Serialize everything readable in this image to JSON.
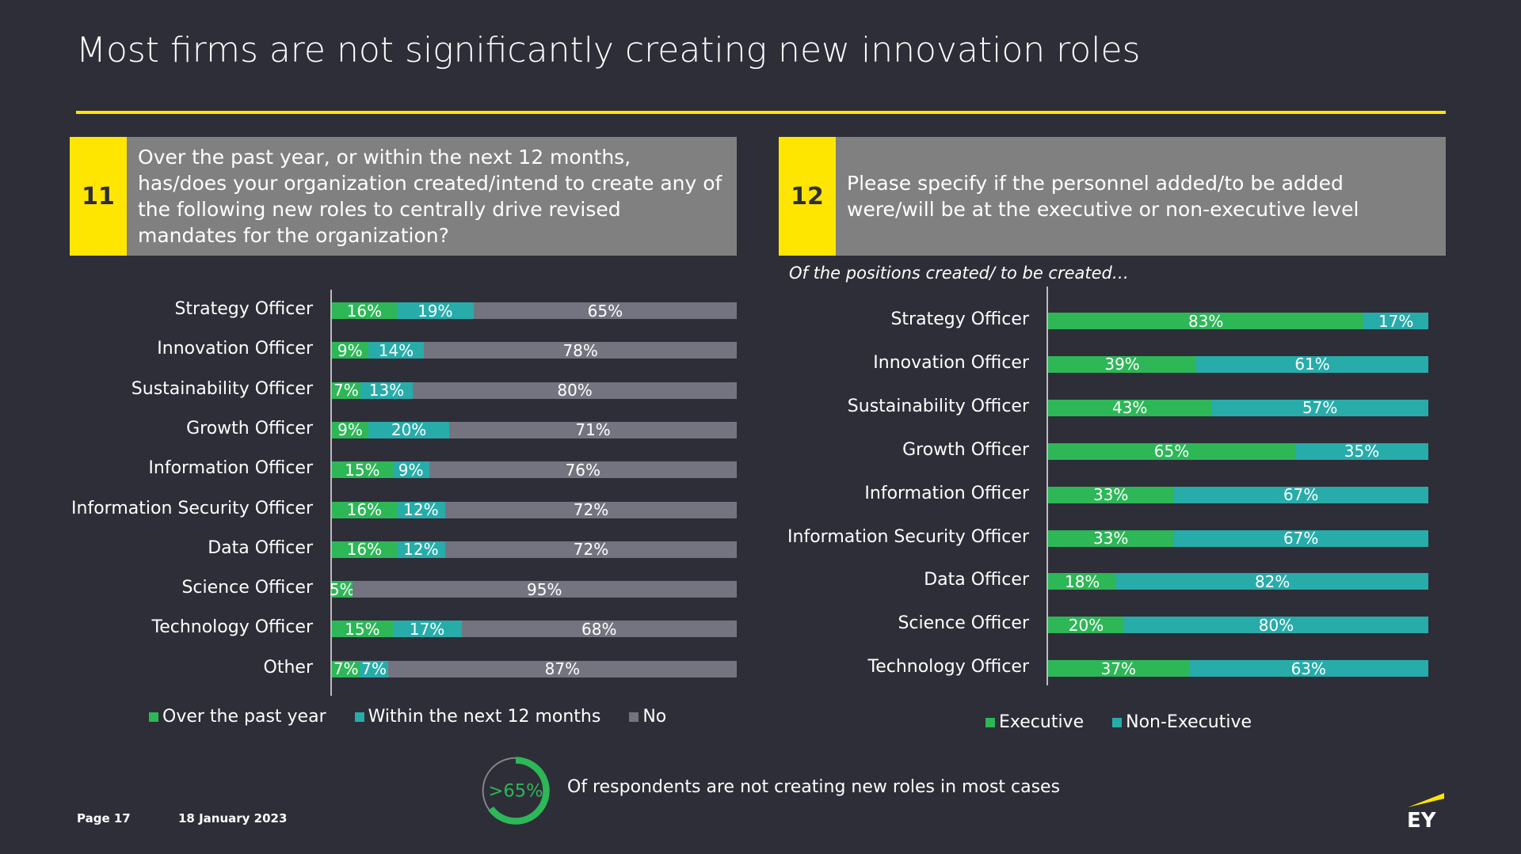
{
  "title": "Most firms are not significantly creating new innovation roles",
  "question11": {
    "number": "11",
    "text": "Over the past year, or within the next 12 months, has/does your organization created/intend to create any of the following new roles to centrally drive revised mandates for the organization?"
  },
  "question12": {
    "number": "12",
    "text": "Please specify if the personnel added/to be added were/will be at the executive or non-executive level"
  },
  "subtitle12": "Of the positions created/ to be created…",
  "colors": {
    "green": "#2db757",
    "teal": "#27acaa",
    "grey": "#747480",
    "yellow": "#ffe600",
    "bg": "#2e2e38"
  },
  "chart_data": [
    {
      "type": "bar",
      "stacked": true,
      "orientation": "horizontal",
      "title": "Q11",
      "categories": [
        "Strategy Officer",
        "Innovation Officer",
        "Sustainability Officer",
        "Growth Officer",
        "Information Officer",
        "Information Security Officer",
        "Data Officer",
        "Science Officer",
        "Technology Officer",
        "Other"
      ],
      "series": [
        {
          "name": "Over the past year",
          "color": "#2db757",
          "values": [
            16,
            9,
            7,
            9,
            15,
            16,
            16,
            5,
            15,
            7
          ]
        },
        {
          "name": "Within the next 12 months",
          "color": "#27acaa",
          "values": [
            19,
            14,
            13,
            20,
            9,
            12,
            12,
            0,
            17,
            7
          ]
        },
        {
          "name": "No",
          "color": "#747480",
          "values": [
            65,
            78,
            80,
            71,
            76,
            72,
            72,
            95,
            68,
            87
          ]
        }
      ],
      "xlim": [
        0,
        100
      ],
      "legend": "bottom"
    },
    {
      "type": "bar",
      "stacked": true,
      "orientation": "horizontal",
      "title": "Q12",
      "categories": [
        "Strategy Officer",
        "Innovation Officer",
        "Sustainability Officer",
        "Growth Officer",
        "Information Officer",
        "Information Security Officer",
        "Data Officer",
        "Science Officer",
        "Technology Officer"
      ],
      "series": [
        {
          "name": "Executive",
          "color": "#2db757",
          "values": [
            83,
            39,
            43,
            65,
            33,
            33,
            18,
            20,
            37
          ]
        },
        {
          "name": "Non-Executive",
          "color": "#27acaa",
          "values": [
            17,
            61,
            57,
            35,
            67,
            67,
            82,
            80,
            63
          ]
        }
      ],
      "xlim": [
        0,
        100
      ],
      "legend": "bottom"
    }
  ],
  "callout": {
    "value": ">65%",
    "fraction": 0.65,
    "text": "Of respondents are not creating new roles in most cases"
  },
  "footer": {
    "page": "Page 17",
    "date": "18 January 2023"
  },
  "logo": {
    "text": "EY"
  }
}
